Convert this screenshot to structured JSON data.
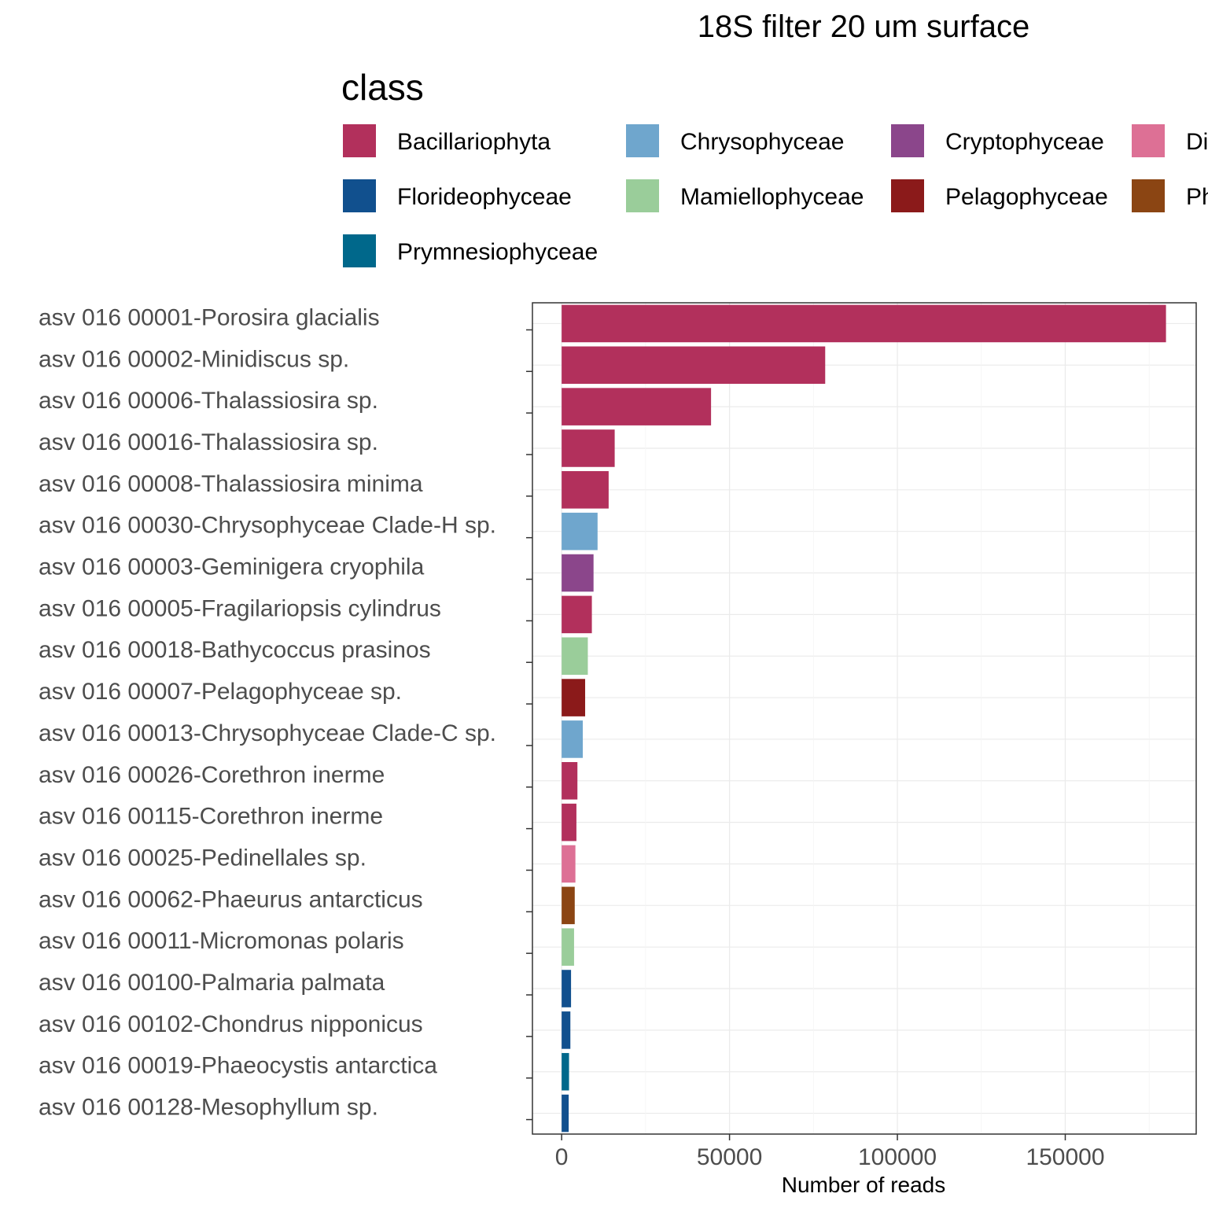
{
  "chart_data": {
    "type": "bar",
    "orientation": "horizontal",
    "title": "18S filter 20 um surface",
    "xlabel": "Number of reads",
    "ylabel": "",
    "xlim": [
      -8700,
      189000
    ],
    "xticks": [
      0,
      50000,
      100000,
      150000
    ],
    "xtick_labels": [
      "0",
      "50000",
      "100000",
      "150000"
    ],
    "grid": true,
    "legend": {
      "title": "class",
      "position": "top",
      "entries": [
        {
          "label": "Bacillariophyta",
          "color": "#B2305C"
        },
        {
          "label": "Chrysophyceae",
          "color": "#6FA6CD"
        },
        {
          "label": "Cryptophyceae",
          "color": "#8B468B"
        },
        {
          "label": "Dictyochophyceae",
          "color": "#DD7095"
        },
        {
          "label": "Florideophyceae",
          "color": "#11508E"
        },
        {
          "label": "Mamiellophyceae",
          "color": "#9ACD9A"
        },
        {
          "label": "Pelagophyceae",
          "color": "#8B1A1A"
        },
        {
          "label": "Phaeophyceae",
          "color": "#8B4513"
        },
        {
          "label": "Prymnesiophyceae",
          "color": "#00688B"
        }
      ]
    },
    "categories": [
      "asv 016 00001-Porosira glacialis",
      "asv 016 00002-Minidiscus sp.",
      "asv 016 00006-Thalassiosira sp.",
      "asv 016 00016-Thalassiosira sp.",
      "asv 016 00008-Thalassiosira minima",
      "asv 016 00030-Chrysophyceae Clade-H sp.",
      "asv 016 00003-Geminigera cryophila",
      "asv 016 00005-Fragilariopsis cylindrus",
      "asv 016 00018-Bathycoccus prasinos",
      "asv 016 00007-Pelagophyceae sp.",
      "asv 016 00013-Chrysophyceae Clade-C sp.",
      "asv 016 00026-Corethron inerme",
      "asv 016 00115-Corethron inerme",
      "asv 016 00025-Pedinellales sp.",
      "asv 016 00062-Phaeurus antarcticus",
      "asv 016 00011-Micromonas polaris",
      "asv 016 00100-Palmaria palmata",
      "asv 016 00102-Chondrus nipponicus",
      "asv 016 00019-Phaeocystis antarctica",
      "asv 016 00128-Mesophyllum sp."
    ],
    "values": [
      180000,
      78500,
      44500,
      15800,
      14000,
      10700,
      9500,
      9000,
      7800,
      7000,
      6300,
      4700,
      4400,
      4100,
      3900,
      3700,
      2800,
      2600,
      2200,
      2100
    ],
    "classes": [
      "Bacillariophyta",
      "Bacillariophyta",
      "Bacillariophyta",
      "Bacillariophyta",
      "Bacillariophyta",
      "Chrysophyceae",
      "Cryptophyceae",
      "Bacillariophyta",
      "Mamiellophyceae",
      "Pelagophyceae",
      "Chrysophyceae",
      "Bacillariophyta",
      "Bacillariophyta",
      "Dictyochophyceae",
      "Phaeophyceae",
      "Mamiellophyceae",
      "Florideophyceae",
      "Florideophyceae",
      "Prymnesiophyceae",
      "Florideophyceae"
    ]
  }
}
